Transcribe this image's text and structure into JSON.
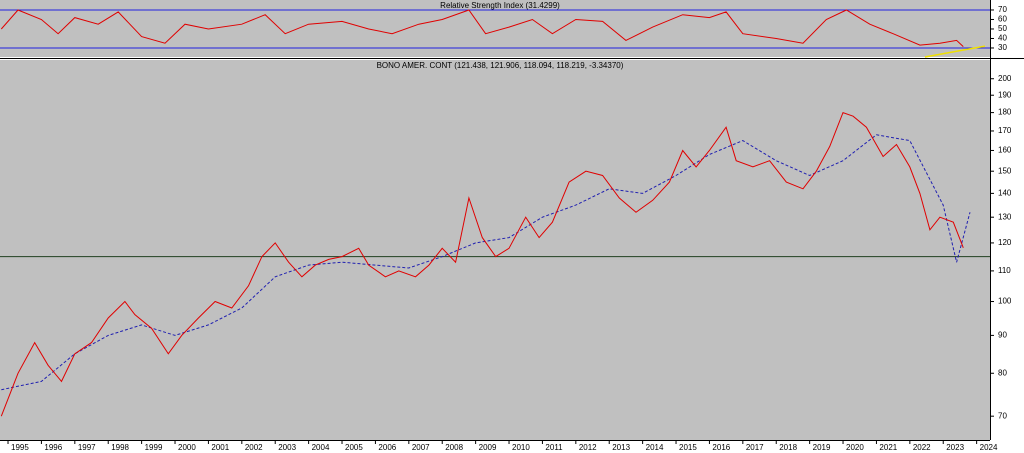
{
  "chart_data": [
    {
      "type": "line",
      "title": "Relative Strength Index (31.4299)",
      "x": [
        1994.8,
        1995.3,
        1996,
        1996.5,
        1997,
        1997.7,
        1998.3,
        1999,
        1999.7,
        2000.3,
        2001,
        2002,
        2002.7,
        2003.3,
        2004,
        2005,
        2005.8,
        2006.5,
        2007.3,
        2008,
        2008.8,
        2009.3,
        2010,
        2010.7,
        2011.3,
        2012,
        2012.8,
        2013.5,
        2014.3,
        2015.2,
        2016,
        2016.5,
        2017,
        2018,
        2018.8,
        2019.5,
        2020.1,
        2020.8,
        2021.5,
        2022.3,
        2022.9,
        2023.4,
        2023.6
      ],
      "series": [
        {
          "color": "#e00000",
          "values": [
            50,
            70,
            60,
            45,
            62,
            55,
            68,
            42,
            35,
            55,
            50,
            55,
            65,
            45,
            55,
            58,
            50,
            45,
            55,
            60,
            70,
            45,
            52,
            60,
            45,
            60,
            58,
            38,
            52,
            65,
            62,
            68,
            45,
            40,
            35,
            60,
            70,
            55,
            45,
            33,
            35,
            38,
            31.4
          ]
        }
      ],
      "levels": [
        30,
        70
      ],
      "level_color": "#2020e0",
      "trendline": {
        "x": [
          2022.45,
          2024.25
        ],
        "values": [
          20.5,
          32
        ],
        "color": "#f0e000"
      },
      "xlim": [
        1994.76,
        2024.4
      ],
      "ylim": [
        20.5,
        80.5
      ],
      "yticks": [
        30,
        40,
        50,
        60,
        70
      ]
    },
    {
      "type": "line",
      "title": "BONO AMER. CONT (121.438, 121.906, 118.094, 118.219, -3.34370)",
      "x": [
        1994.8,
        1995.3,
        1995.8,
        1996.2,
        1996.6,
        1997,
        1997.5,
        1998,
        1998.5,
        1998.8,
        1999.3,
        1999.8,
        2000.2,
        2000.7,
        2001.2,
        2001.7,
        2002.2,
        2002.6,
        2003,
        2003.4,
        2003.8,
        2004.2,
        2004.6,
        2005,
        2005.5,
        2005.8,
        2006.3,
        2006.7,
        2007.2,
        2007.6,
        2008,
        2008.4,
        2008.8,
        2009.2,
        2009.6,
        2010,
        2010.5,
        2010.9,
        2011.3,
        2011.8,
        2012.3,
        2012.8,
        2013.3,
        2013.8,
        2014.3,
        2014.8,
        2015.2,
        2015.6,
        2016,
        2016.5,
        2016.8,
        2017.3,
        2017.8,
        2018.3,
        2018.8,
        2019.2,
        2019.6,
        2020,
        2020.3,
        2020.7,
        2021.2,
        2021.6,
        2022,
        2022.3,
        2022.6,
        2022.9,
        2023.3,
        2023.6
      ],
      "series": [
        {
          "color": "#e00000",
          "values": [
            70,
            80,
            88,
            82,
            78,
            85,
            88,
            95,
            100,
            96,
            92,
            85,
            90,
            95,
            100,
            98,
            105,
            115,
            120,
            113,
            108,
            112,
            114,
            115,
            118,
            112,
            108,
            110,
            108,
            112,
            118,
            113,
            138,
            122,
            115,
            118,
            130,
            122,
            128,
            145,
            150,
            148,
            138,
            132,
            137,
            145,
            160,
            152,
            160,
            172,
            155,
            152,
            155,
            145,
            142,
            150,
            162,
            180,
            178,
            172,
            157,
            163,
            152,
            140,
            125,
            130,
            128,
            118.2
          ]
        }
      ],
      "moving_average": {
        "x": [
          1994.8,
          1996,
          1997,
          1998,
          1999,
          2000,
          2001,
          2002,
          2003,
          2004,
          2005,
          2006,
          2007,
          2008,
          2009,
          2010,
          2011,
          2012,
          2013,
          2014,
          2015,
          2016,
          2017,
          2018,
          2019,
          2020,
          2021,
          2022,
          2023,
          2023.4,
          2023.8
        ],
        "values": [
          76,
          78,
          85,
          90,
          93,
          90,
          93,
          98,
          108,
          112,
          113,
          112,
          111,
          115,
          120,
          122,
          130,
          135,
          142,
          140,
          148,
          158,
          165,
          155,
          148,
          155,
          168,
          165,
          135,
          113,
          132
        ],
        "color": "#2020b0"
      },
      "hline": {
        "value": 115,
        "color": "#204020"
      },
      "log_scale": true,
      "xlim": [
        1994.76,
        2024.4
      ],
      "ylim": [
        65,
        212
      ],
      "yticks": [
        70,
        80,
        90,
        100,
        110,
        120,
        130,
        140,
        150,
        160,
        170,
        180,
        190,
        200
      ],
      "xticks": [
        1995,
        1996,
        1997,
        1998,
        1999,
        2000,
        2001,
        2002,
        2003,
        2004,
        2005,
        2006,
        2007,
        2008,
        2009,
        2010,
        2011,
        2012,
        2013,
        2014,
        2015,
        2016,
        2017,
        2018,
        2019,
        2020,
        2021,
        2022,
        2023,
        2024
      ]
    }
  ]
}
